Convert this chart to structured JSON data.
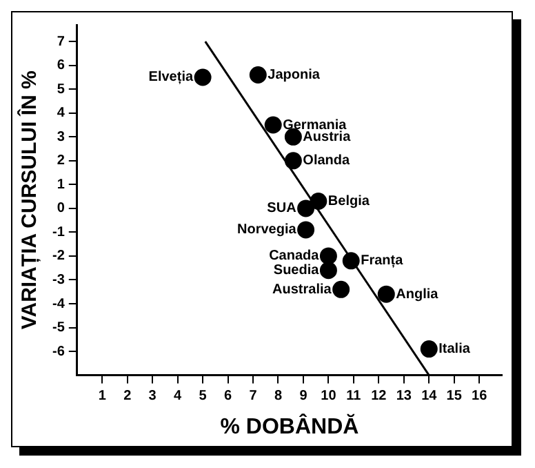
{
  "chart_data": {
    "type": "scatter",
    "xlabel": "% DOBÂNDĂ",
    "ylabel": "VARIAȚIA CURSULUI ÎN %",
    "x": [
      5,
      7.2,
      7.8,
      8.6,
      8.6,
      9.6,
      9.1,
      9.1,
      10,
      10,
      10.9,
      10.5,
      12.3,
      14
    ],
    "series": [
      {
        "color": "#000000",
        "values": [
          5.5,
          5.6,
          3.5,
          3,
          2,
          0.3,
          0,
          -0.9,
          -2,
          -2.6,
          -2.2,
          -3.4,
          -3.6,
          -5.9
        ]
      },
      {
        "type": "line",
        "color": "#000000",
        "x": [
          5.1,
          14
        ],
        "values": [
          7,
          -7
        ],
        "marker": "none"
      }
    ],
    "annotations": [
      {
        "text": "Elveția",
        "x": 5,
        "y": 5.5
      },
      {
        "text": "Japonia",
        "x": 7.2,
        "y": 5.6
      },
      {
        "text": "Germania",
        "x": 7.8,
        "y": 3.5
      },
      {
        "text": "Austria",
        "x": 8.6,
        "y": 3
      },
      {
        "text": "Olanda",
        "x": 8.6,
        "y": 2
      },
      {
        "text": "Belgia",
        "x": 9.6,
        "y": 0.3
      },
      {
        "text": "SUA",
        "x": 9.1,
        "y": 0
      },
      {
        "text": "Norvegia",
        "x": 9.1,
        "y": -0.9
      },
      {
        "text": "Canada",
        "x": 10,
        "y": -2
      },
      {
        "text": "Suedia",
        "x": 10,
        "y": -2.6
      },
      {
        "text": "Franța",
        "x": 10.9,
        "y": -2.2
      },
      {
        "text": "Australia",
        "x": 10.5,
        "y": -3.4
      },
      {
        "text": "Anglia",
        "x": 12.3,
        "y": -3.6
      },
      {
        "text": "Italia",
        "x": 14,
        "y": -5.9
      }
    ],
    "xlim": [
      0,
      16.9
    ],
    "xticks": [
      1,
      2,
      3,
      4,
      5,
      6,
      7,
      8,
      9,
      10,
      11,
      12,
      13,
      14,
      15,
      16
    ],
    "ylim": [
      -7,
      7.7
    ],
    "yticks": [
      -6,
      -5,
      -4,
      -3,
      -2,
      -1,
      0,
      1,
      2,
      3,
      4,
      5,
      6,
      7
    ],
    "marker": "circle",
    "grid": false,
    "legend": false
  }
}
